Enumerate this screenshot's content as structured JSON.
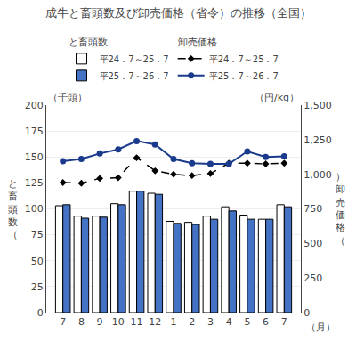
{
  "chart_data": {
    "type": "bar",
    "title": "成牛と畜頭数及び卸売価格（省令）の推移（全国）",
    "categories": [
      "7",
      "8",
      "9",
      "10",
      "11",
      "12",
      "1",
      "2",
      "3",
      "4",
      "5",
      "6",
      "7"
    ],
    "xlabel": "（月）",
    "ylabel": "と\n畜\n頭\n数\n（",
    "ylabel_unit": "（千頭）",
    "y2label": "）\n卸\n売\n価\n格\n（",
    "y2label_unit": "（円/kg）",
    "ylim": [
      0,
      200
    ],
    "yticks": [
      0,
      25,
      50,
      75,
      100,
      125,
      150,
      175,
      200
    ],
    "y2lim": [
      0,
      1500
    ],
    "y2ticks": [
      0,
      250,
      500,
      750,
      {
        "value": 1000,
        "label": "1,000"
      },
      {
        "value": 1250,
        "label": "1,250"
      },
      {
        "value": 1500,
        "label": "1,500"
      }
    ],
    "grid": true,
    "series": [
      {
        "name": "平24．7～25．7",
        "group": "と畜頭数",
        "type": "bar",
        "color": "#ffffff",
        "edge_color": "#000000",
        "values": [
          103,
          93,
          93,
          105,
          117,
          115,
          88,
          87,
          93,
          102,
          94,
          90,
          104
        ]
      },
      {
        "name": "平25．7～26．7",
        "group": "と畜頭数",
        "type": "bar",
        "color": "#4472c4",
        "edge_color": "#000000",
        "values": [
          104,
          91,
          92,
          104,
          117,
          114,
          86,
          85,
          90,
          98,
          90,
          90,
          102
        ]
      },
      {
        "name": "平24．7～25．7",
        "group": "卸売価格",
        "type": "line",
        "axis": "y2",
        "color": "#000000",
        "marker": "diamond",
        "line_style": "dashed",
        "values": [
          940,
          935,
          970,
          975,
          1120,
          1025,
          1000,
          990,
          1005,
          1080,
          1080,
          1075,
          1080
        ]
      },
      {
        "name": "平25．7～26．7",
        "group": "卸売価格",
        "type": "line",
        "axis": "y2",
        "color": "#1a3a8c",
        "marker": "circle",
        "line_style": "solid",
        "values": [
          1095,
          1110,
          1150,
          1180,
          1240,
          1215,
          1110,
          1080,
          1075,
          1075,
          1165,
          1125,
          1130
        ]
      }
    ]
  }
}
